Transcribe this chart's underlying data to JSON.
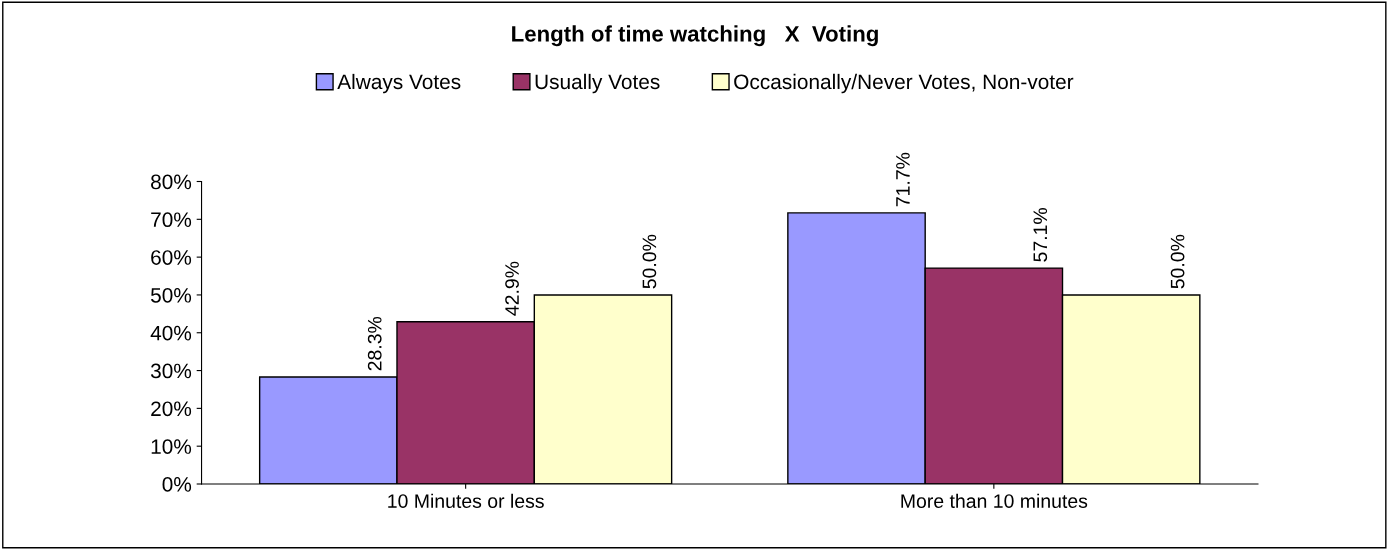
{
  "chart_data": {
    "type": "bar",
    "title": "Length of time watching   X  Voting",
    "categories": [
      "10 Minutes or less",
      "More than 10 minutes"
    ],
    "series": [
      {
        "name": "Always Votes",
        "color": "#9999ff",
        "values": [
          28.3,
          71.7
        ],
        "value_labels": [
          "28.3%",
          "71.7%"
        ]
      },
      {
        "name": "Usually Votes",
        "color": "#993366",
        "values": [
          42.9,
          57.1
        ],
        "value_labels": [
          "42.9%",
          "57.1%"
        ]
      },
      {
        "name": "Occasionally/Never Votes, Non-voter",
        "color": "#ffffcc",
        "values": [
          50.0,
          50.0
        ],
        "value_labels": [
          "50.0%",
          "50.0%"
        ]
      }
    ],
    "ylim": [
      0,
      80
    ],
    "yticks": [
      {
        "value": 0,
        "label": "0%"
      },
      {
        "value": 10,
        "label": "10%"
      },
      {
        "value": 20,
        "label": "20%"
      },
      {
        "value": 30,
        "label": "30%"
      },
      {
        "value": 40,
        "label": "40%"
      },
      {
        "value": 50,
        "label": "50%"
      },
      {
        "value": 60,
        "label": "60%"
      },
      {
        "value": 70,
        "label": "70%"
      },
      {
        "value": 80,
        "label": "80%"
      }
    ],
    "grid": false,
    "legend": "top"
  }
}
